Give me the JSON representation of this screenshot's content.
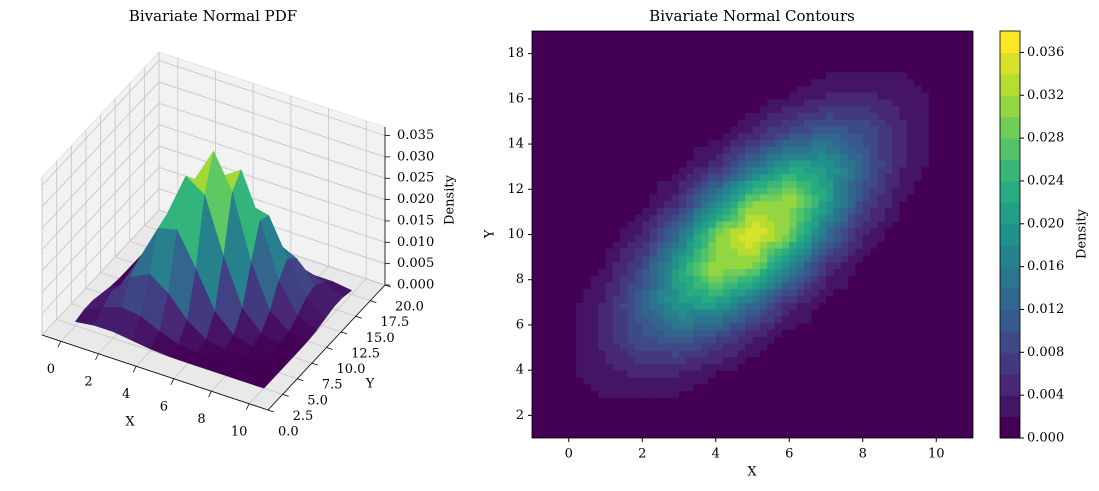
{
  "chart_data": [
    {
      "type": "surface3d",
      "title": "Bivariate Normal PDF",
      "xlabel": "X",
      "ylabel": "Y",
      "zlabel": "Density",
      "colormap": "viridis",
      "grid": true,
      "x": [
        0,
        1,
        2,
        3,
        4,
        5,
        6,
        7,
        8,
        9,
        10
      ],
      "y": [
        2.5,
        4,
        5.5,
        7,
        8.5,
        10,
        11.5,
        13,
        14.5,
        16,
        17.5
      ],
      "z": [
        [
          0.00094,
          0.00153,
          0.00153,
          0.00094,
          0.00035,
          8e-05,
          1e-05,
          0,
          0,
          0,
          0
        ],
        [
          0.00153,
          0.00353,
          0.00498,
          0.0043,
          0.00227,
          0.00074,
          0.00015,
          2e-05,
          0,
          0,
          0
        ],
        [
          0.00153,
          0.00498,
          0.00989,
          0.01203,
          0.00896,
          0.00409,
          0.00114,
          0.0002,
          2e-05,
          0,
          0
        ],
        [
          0.00094,
          0.0043,
          0.01203,
          0.02062,
          0.02166,
          0.01394,
          0.00549,
          0.00132,
          0.0002,
          2e-05,
          0
        ],
        [
          0.00035,
          0.00227,
          0.00896,
          0.02166,
          0.03206,
          0.02907,
          0.01614,
          0.00549,
          0.00114,
          0.00015,
          1e-05
        ],
        [
          8e-05,
          0.00074,
          0.00409,
          0.01394,
          0.02907,
          0.03714,
          0.02907,
          0.01394,
          0.00409,
          0.00074,
          8e-05
        ],
        [
          1e-05,
          0.00015,
          0.00114,
          0.00549,
          0.01614,
          0.02907,
          0.03206,
          0.02166,
          0.00896,
          0.00227,
          0.00035
        ],
        [
          0,
          2e-05,
          0.0002,
          0.00132,
          0.00549,
          0.01394,
          0.02166,
          0.02062,
          0.01203,
          0.0043,
          0.00094
        ],
        [
          0,
          0,
          2e-05,
          0.0002,
          0.00114,
          0.00409,
          0.00896,
          0.01203,
          0.00989,
          0.00498,
          0.00153
        ],
        [
          0,
          0,
          0,
          2e-05,
          0.00015,
          0.00074,
          0.00227,
          0.0043,
          0.00498,
          0.00353,
          0.00153
        ],
        [
          0,
          0,
          0,
          0,
          1e-05,
          8e-05,
          0.00035,
          0.00094,
          0.00153,
          0.00153,
          0.00094
        ]
      ],
      "xlim": [
        -1,
        11
      ],
      "ylim": [
        0,
        20
      ],
      "zlim": [
        0,
        0.037
      ],
      "xticks": [
        0,
        2,
        4,
        6,
        8,
        10
      ],
      "yticks": [
        {
          "value": 0,
          "label": "0.0"
        },
        {
          "value": 2.5,
          "label": "2.5"
        },
        {
          "value": 5,
          "label": "5.0"
        },
        {
          "value": 7.5,
          "label": "7.5"
        },
        {
          "value": 10,
          "label": "10.0"
        },
        {
          "value": 12.5,
          "label": "12.5"
        },
        {
          "value": 15,
          "label": "15.0"
        },
        {
          "value": 17.5,
          "label": "17.5"
        },
        {
          "value": 20,
          "label": "20.0"
        }
      ],
      "zticks": [
        {
          "value": 0,
          "label": "0.000"
        },
        {
          "value": 0.005,
          "label": "0.005"
        },
        {
          "value": 0.01,
          "label": "0.010"
        },
        {
          "value": 0.015,
          "label": "0.015"
        },
        {
          "value": 0.02,
          "label": "0.020"
        },
        {
          "value": 0.025,
          "label": "0.025"
        },
        {
          "value": 0.03,
          "label": "0.030"
        },
        {
          "value": 0.035,
          "label": "0.035"
        }
      ]
    },
    {
      "type": "contourf",
      "title": "Bivariate Normal Contours",
      "xlabel": "X",
      "ylabel": "Y",
      "colorbar_label": "Density",
      "colormap": "viridis",
      "x": [
        0,
        1,
        2,
        3,
        4,
        5,
        6,
        7,
        8,
        9,
        10
      ],
      "y": [
        2.5,
        4,
        5.5,
        7,
        8.5,
        10,
        11.5,
        13,
        14.5,
        16,
        17.5
      ],
      "z": [
        [
          0.00094,
          0.00153,
          0.00153,
          0.00094,
          0.00035,
          8e-05,
          1e-05,
          0,
          0,
          0,
          0
        ],
        [
          0.00153,
          0.00353,
          0.00498,
          0.0043,
          0.00227,
          0.00074,
          0.00015,
          2e-05,
          0,
          0,
          0
        ],
        [
          0.00153,
          0.00498,
          0.00989,
          0.01203,
          0.00896,
          0.00409,
          0.00114,
          0.0002,
          2e-05,
          0,
          0
        ],
        [
          0.00094,
          0.0043,
          0.01203,
          0.02062,
          0.02166,
          0.01394,
          0.00549,
          0.00132,
          0.0002,
          2e-05,
          0
        ],
        [
          0.00035,
          0.00227,
          0.00896,
          0.02166,
          0.03206,
          0.02907,
          0.01614,
          0.00549,
          0.00114,
          0.00015,
          1e-05
        ],
        [
          8e-05,
          0.00074,
          0.00409,
          0.01394,
          0.02907,
          0.03714,
          0.02907,
          0.01394,
          0.00409,
          0.00074,
          8e-05
        ],
        [
          1e-05,
          0.00015,
          0.00114,
          0.00549,
          0.01614,
          0.02907,
          0.03206,
          0.02166,
          0.00896,
          0.00227,
          0.00035
        ],
        [
          0,
          2e-05,
          0.0002,
          0.00132,
          0.00549,
          0.01394,
          0.02166,
          0.02062,
          0.01203,
          0.0043,
          0.00094
        ],
        [
          0,
          0,
          2e-05,
          0.0002,
          0.00114,
          0.00409,
          0.00896,
          0.01203,
          0.00989,
          0.00498,
          0.00153
        ],
        [
          0,
          0,
          0,
          2e-05,
          0.00015,
          0.00074,
          0.00227,
          0.0043,
          0.00498,
          0.00353,
          0.00153
        ],
        [
          0,
          0,
          0,
          0,
          1e-05,
          8e-05,
          0.00035,
          0.00094,
          0.00153,
          0.00153,
          0.00094
        ]
      ],
      "levels": [
        0,
        0.002,
        0.004,
        0.006,
        0.008,
        0.01,
        0.012,
        0.014,
        0.016,
        0.018,
        0.02,
        0.022,
        0.024,
        0.026,
        0.028,
        0.03,
        0.032,
        0.034,
        0.036,
        0.038
      ],
      "xlim": [
        -1,
        11
      ],
      "ylim": [
        1,
        19
      ],
      "xticks": [
        0,
        2,
        4,
        6,
        8,
        10
      ],
      "yticks": [
        2,
        4,
        6,
        8,
        10,
        12,
        14,
        16,
        18
      ],
      "cticks": [
        {
          "value": 0,
          "label": "0.000"
        },
        {
          "value": 0.004,
          "label": "0.004"
        },
        {
          "value": 0.008,
          "label": "0.008"
        },
        {
          "value": 0.012,
          "label": "0.012"
        },
        {
          "value": 0.016,
          "label": "0.016"
        },
        {
          "value": 0.02,
          "label": "0.020"
        },
        {
          "value": 0.024,
          "label": "0.024"
        },
        {
          "value": 0.028,
          "label": "0.028"
        },
        {
          "value": 0.032,
          "label": "0.032"
        },
        {
          "value": 0.036,
          "label": "0.036"
        }
      ]
    }
  ]
}
